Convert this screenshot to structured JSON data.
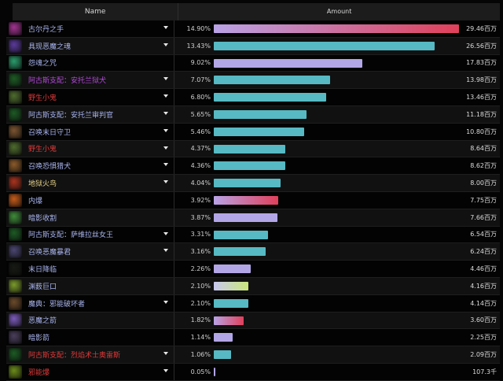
{
  "header": {
    "name_col": "Name",
    "amount_col": "Amount"
  },
  "colors": {
    "bar_teal": "#56b9c3",
    "bar_lavender": "#b3a6e6",
    "bar_gradient_pink_red": [
      "#b9a2e6",
      "#e0405a"
    ],
    "bar_gradient_lime": [
      "#c8c8f0",
      "#c9e67a"
    ],
    "text_default": "#a9b4ee",
    "text_pet": "#b24ad8",
    "text_red": "#e03a3a",
    "text_gold": "#e9d48a"
  },
  "rows": [
    {
      "name": "古尔丹之手",
      "pct": "14.90%",
      "amount": "29.46百万",
      "bar_pct": 100,
      "bar": "gradient-red",
      "text": "blue",
      "icon": "#a0338f",
      "dropdown": true
    },
    {
      "name": "具现恶魔之魂",
      "pct": "13.43%",
      "amount": "26.56百万",
      "bar_pct": 90.2,
      "bar": "teal",
      "text": "blue",
      "icon": "#5a3a9a",
      "dropdown": true
    },
    {
      "name": "怨魂之咒",
      "pct": "9.02%",
      "amount": "17.83百万",
      "bar_pct": 60.5,
      "bar": "lavender",
      "text": "blue",
      "icon": "#2a9a6a",
      "dropdown": false
    },
    {
      "name": "阿古斯支配：安托兰狱犬",
      "pct": "7.07%",
      "amount": "13.98百万",
      "bar_pct": 47.4,
      "bar": "teal",
      "text": "purple",
      "icon": "#1d5a24",
      "dropdown": true
    },
    {
      "name": "野生小鬼",
      "pct": "6.80%",
      "amount": "13.46百万",
      "bar_pct": 45.7,
      "bar": "teal",
      "text": "red",
      "icon": "#4e6b2e",
      "dropdown": true
    },
    {
      "name": "阿古斯支配：安托兰审判官",
      "pct": "5.65%",
      "amount": "11.18百万",
      "bar_pct": 37.9,
      "bar": "teal",
      "text": "blue",
      "icon": "#1d5a24",
      "dropdown": true
    },
    {
      "name": "召唤末日守卫",
      "pct": "5.46%",
      "amount": "10.80百万",
      "bar_pct": 36.7,
      "bar": "teal",
      "text": "blue",
      "icon": "#7a5430",
      "dropdown": true
    },
    {
      "name": "野生小鬼",
      "pct": "4.37%",
      "amount": "8.64百万",
      "bar_pct": 29.3,
      "bar": "teal",
      "text": "red",
      "icon": "#4e6b2e",
      "dropdown": true
    },
    {
      "name": "召唤恐惧猎犬",
      "pct": "4.36%",
      "amount": "8.62百万",
      "bar_pct": 29.3,
      "bar": "teal",
      "text": "blue",
      "icon": "#8a5a2a",
      "dropdown": true
    },
    {
      "name": "地狱火鸟",
      "pct": "4.04%",
      "amount": "8.00百万",
      "bar_pct": 27.2,
      "bar": "teal",
      "text": "gold",
      "icon": "#a8331e",
      "dropdown": true
    },
    {
      "name": "内爆",
      "pct": "3.92%",
      "amount": "7.75百万",
      "bar_pct": 26.3,
      "bar": "gradient-red",
      "text": "blue",
      "icon": "#c25a1a",
      "dropdown": false
    },
    {
      "name": "暗影收割",
      "pct": "3.87%",
      "amount": "7.66百万",
      "bar_pct": 26.0,
      "bar": "lavender",
      "text": "blue",
      "icon": "#3f8a3a",
      "dropdown": false
    },
    {
      "name": "阿古斯支配：萨维拉丝女王",
      "pct": "3.31%",
      "amount": "6.54百万",
      "bar_pct": 22.2,
      "bar": "teal",
      "text": "blue",
      "icon": "#1d5a24",
      "dropdown": true
    },
    {
      "name": "召唤恶魔暴君",
      "pct": "3.16%",
      "amount": "6.24百万",
      "bar_pct": 21.2,
      "bar": "teal",
      "text": "blue",
      "icon": "#4a4670",
      "dropdown": true
    },
    {
      "name": "末日降临",
      "pct": "2.26%",
      "amount": "4.46百万",
      "bar_pct": 15.1,
      "bar": "lavender",
      "text": "blue",
      "icon": "#161a14",
      "dropdown": false
    },
    {
      "name": "渊薮巨口",
      "pct": "2.10%",
      "amount": "4.16百万",
      "bar_pct": 14.1,
      "bar": "gradient-lime",
      "text": "blue",
      "icon": "#7a9a2a",
      "dropdown": false
    },
    {
      "name": "魔典：邪能破坏者",
      "pct": "2.10%",
      "amount": "4.14百万",
      "bar_pct": 14.0,
      "bar": "teal",
      "text": "blue",
      "icon": "#6a4a2a",
      "dropdown": true
    },
    {
      "name": "恶魔之箭",
      "pct": "1.82%",
      "amount": "3.60百万",
      "bar_pct": 12.2,
      "bar": "gradient-red",
      "text": "blue",
      "icon": "#7a5ab8",
      "dropdown": false
    },
    {
      "name": "暗影箭",
      "pct": "1.14%",
      "amount": "2.25百万",
      "bar_pct": 7.6,
      "bar": "lavender",
      "text": "blue",
      "icon": "#4a3e5a",
      "dropdown": false
    },
    {
      "name": "阿古斯支配：烈焰术士奥雷斯",
      "pct": "1.06%",
      "amount": "2.09百万",
      "bar_pct": 7.1,
      "bar": "teal",
      "text": "red",
      "icon": "#1d5a24",
      "dropdown": true
    },
    {
      "name": "邪能爆",
      "pct": "0.05%",
      "amount": "107.3千",
      "bar_pct": 0.6,
      "bar": "lavender",
      "text": "red",
      "icon": "#6a8a1a",
      "dropdown": true
    }
  ]
}
